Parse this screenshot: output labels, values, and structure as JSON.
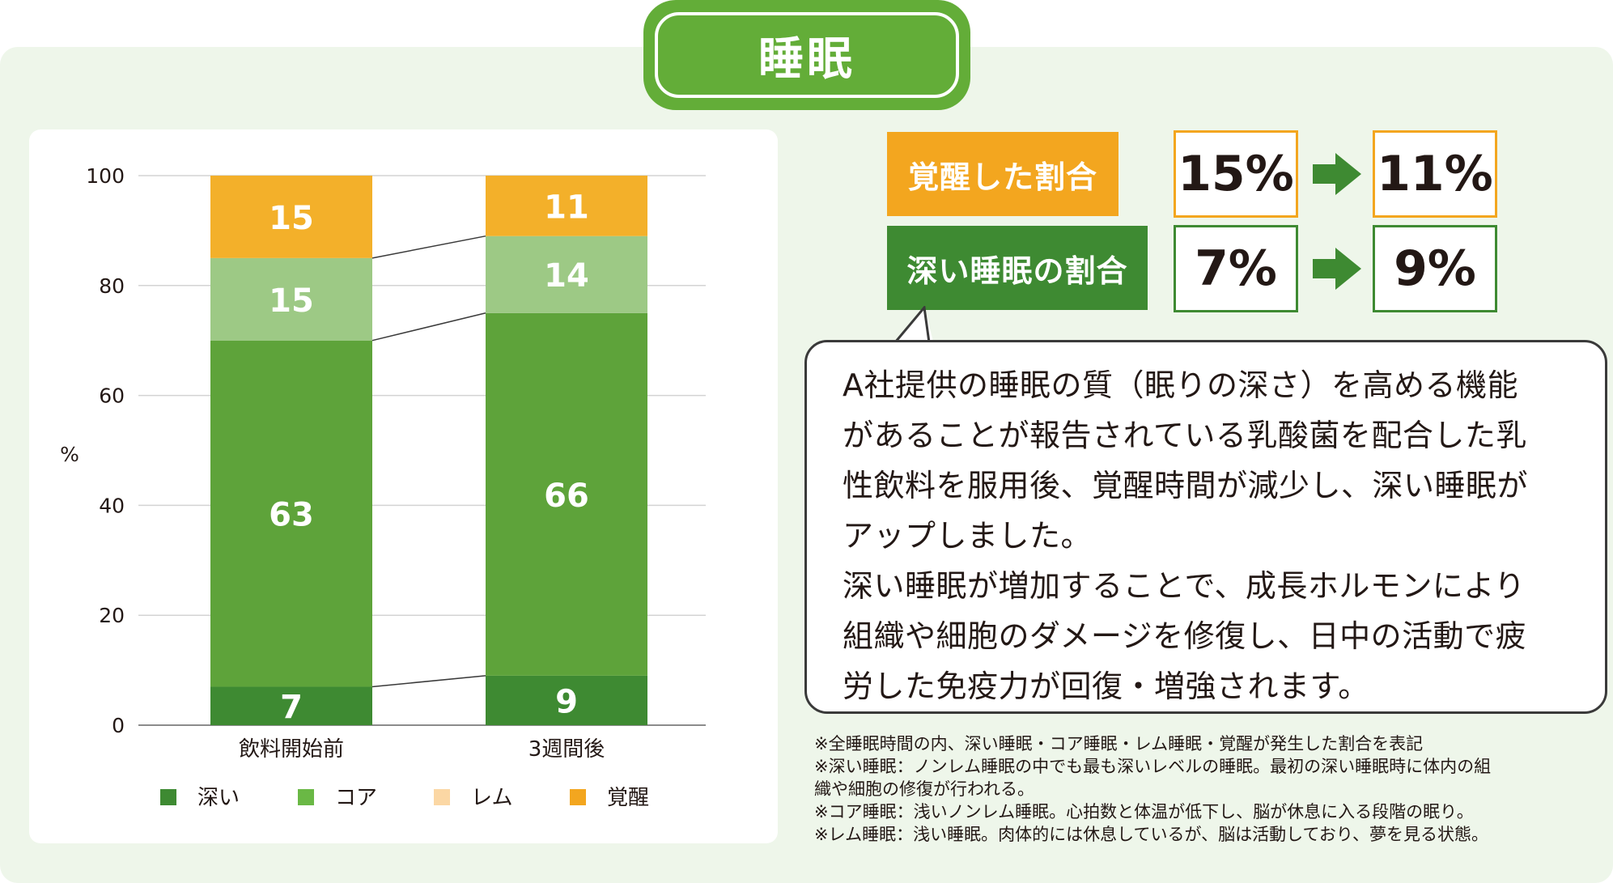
{
  "title": "睡眠",
  "chart_data": {
    "type": "bar",
    "stacked": true,
    "categories": [
      "飲料開始前",
      "3週間後"
    ],
    "series": [
      {
        "name": "深い",
        "values": [
          7,
          9
        ],
        "color": "#3e8a32"
      },
      {
        "name": "コア",
        "values": [
          63,
          66
        ],
        "color": "#5ea33a"
      },
      {
        "name": "レム",
        "values": [
          15,
          14
        ],
        "color": "#9dc985"
      },
      {
        "name": "覚醒",
        "values": [
          15,
          11
        ],
        "color": "#f3b02a"
      }
    ],
    "ylabel": "%",
    "ylim": [
      0,
      100
    ],
    "yticks": [
      0,
      20,
      40,
      60,
      80,
      100
    ],
    "grid": true,
    "legend_position": "bottom",
    "legend": [
      {
        "name": "深い",
        "color": "#3e8a32"
      },
      {
        "name": "コア",
        "color": "#6ab845"
      },
      {
        "name": "レム",
        "color": "#fbd7a4"
      },
      {
        "name": "覚醒",
        "color": "#f3a61f"
      }
    ]
  },
  "metrics": [
    {
      "label": "覚醒した割合",
      "before": "15%",
      "after": "11%",
      "label_color": "#f3a61f",
      "border_color": "#f3a61f"
    },
    {
      "label": "深い睡眠の割合",
      "before": "7%",
      "after": "9%",
      "label_color": "#3e8a32",
      "border_color": "#3e8a32"
    }
  ],
  "bubble_lines": [
    "A社提供の睡眠の質（眠りの深さ）を高める機能",
    "があることが報告されている乳酸菌を配合した乳",
    "性飲料を服用後、覚醒時間が減少し、深い睡眠が",
    "アップしました。",
    "深い睡眠が増加することで、成長ホルモンにより",
    "組織や細胞のダメージを修復し、日中の活動で疲",
    "労した免疫力が回復・増強されます。"
  ],
  "notes": [
    "※全睡眠時間の内、深い睡眠・コア睡眠・レム睡眠・覚醒が発生した割合を表記",
    "※深い睡眠：ノンレム睡眠の中でも最も深いレベルの睡眠。最初の深い睡眠時に体内の組",
    "織や細胞の修復が行われる。",
    "※コア睡眠：浅いノンレム睡眠。心拍数と体温が低下し、脳が休息に入る段階の眠り。",
    "※レム睡眠：浅い睡眠。肉体的には休息しているが、脳は活動しており、夢を見る状態。"
  ],
  "colors": {
    "green": "#63ad38",
    "arrow": "#3e8a32",
    "panel": "#eef6ea"
  }
}
